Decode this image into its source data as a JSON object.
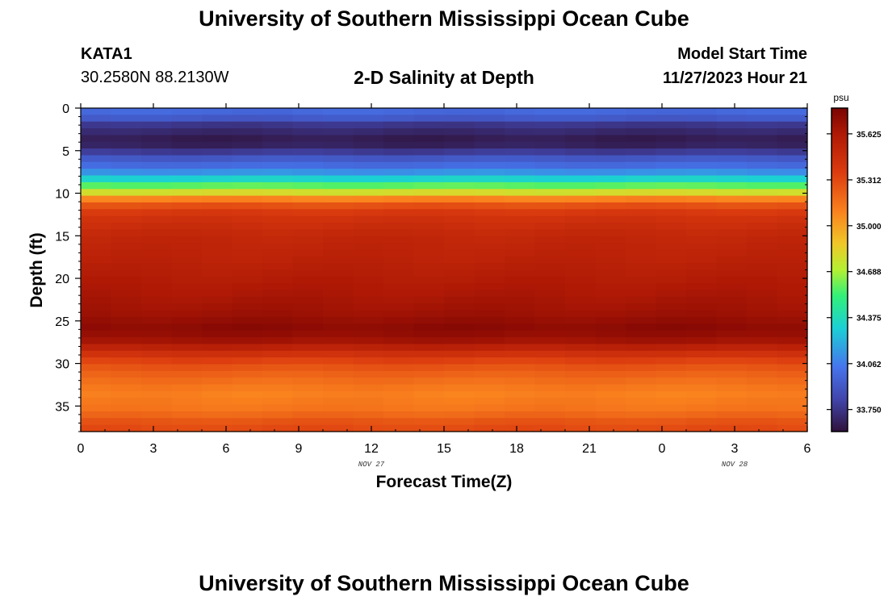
{
  "header": {
    "title": "University of Southern Mississippi Ocean Cube",
    "station_id": "KATA1",
    "coords": "30.2580N  88.2130W",
    "plot_title": "2-D Salinity at Depth",
    "start_label": "Model Start Time",
    "start_value": "11/27/2023 Hour 21"
  },
  "footer": {
    "title": "University of Southern Mississippi Ocean Cube"
  },
  "chart_data": {
    "type": "heatmap",
    "xlabel": "Forecast Time(Z)",
    "ylabel": "Depth (ft)",
    "x_tick_labels": [
      "0",
      "3",
      "6",
      "9",
      "12",
      "15",
      "18",
      "21",
      "0",
      "3",
      "6"
    ],
    "x_date_labels": [
      {
        "text": "NOV 27",
        "tick_index": 4
      },
      {
        "text": "NOV 28",
        "tick_index": 9
      }
    ],
    "xlim_hours": [
      0,
      30
    ],
    "ylim_depth_ft": [
      38,
      0
    ],
    "y_tick_values": [
      0,
      5,
      10,
      15,
      20,
      25,
      30,
      35
    ],
    "colorbar": {
      "unit": "psu",
      "range": [
        33.6,
        35.8
      ],
      "tick_values": [
        33.75,
        34.062,
        34.375,
        34.688,
        35.0,
        35.312,
        35.625
      ],
      "tick_labels": [
        "33.750",
        "34.062",
        "34.375",
        "34.688",
        "35.000",
        "35.312",
        "35.625"
      ]
    },
    "depth_profile": [
      {
        "depth": 0.0,
        "salinity": 34.0
      },
      {
        "depth": 1.0,
        "salinity": 33.95
      },
      {
        "depth": 2.0,
        "salinity": 33.75
      },
      {
        "depth": 3.0,
        "salinity": 33.68
      },
      {
        "depth": 4.0,
        "salinity": 33.62
      },
      {
        "depth": 5.0,
        "salinity": 33.75
      },
      {
        "depth": 6.0,
        "salinity": 33.92
      },
      {
        "depth": 7.0,
        "salinity": 34.02
      },
      {
        "depth": 8.0,
        "salinity": 34.22
      },
      {
        "depth": 9.0,
        "salinity": 34.55
      },
      {
        "depth": 10.0,
        "salinity": 34.82
      },
      {
        "depth": 11.0,
        "salinity": 35.22
      },
      {
        "depth": 12.5,
        "salinity": 35.42
      },
      {
        "depth": 15.0,
        "salinity": 35.52
      },
      {
        "depth": 18.0,
        "salinity": 35.56
      },
      {
        "depth": 21.0,
        "salinity": 35.62
      },
      {
        "depth": 24.0,
        "salinity": 35.68
      },
      {
        "depth": 26.0,
        "salinity": 35.75
      },
      {
        "depth": 27.5,
        "salinity": 35.66
      },
      {
        "depth": 28.5,
        "salinity": 35.5
      },
      {
        "depth": 30.0,
        "salinity": 35.3
      },
      {
        "depth": 31.5,
        "salinity": 35.2
      },
      {
        "depth": 33.5,
        "salinity": 35.1
      },
      {
        "depth": 35.5,
        "salinity": 35.15
      },
      {
        "depth": 37.0,
        "salinity": 35.28
      },
      {
        "depth": 38.0,
        "salinity": 35.32
      }
    ]
  }
}
